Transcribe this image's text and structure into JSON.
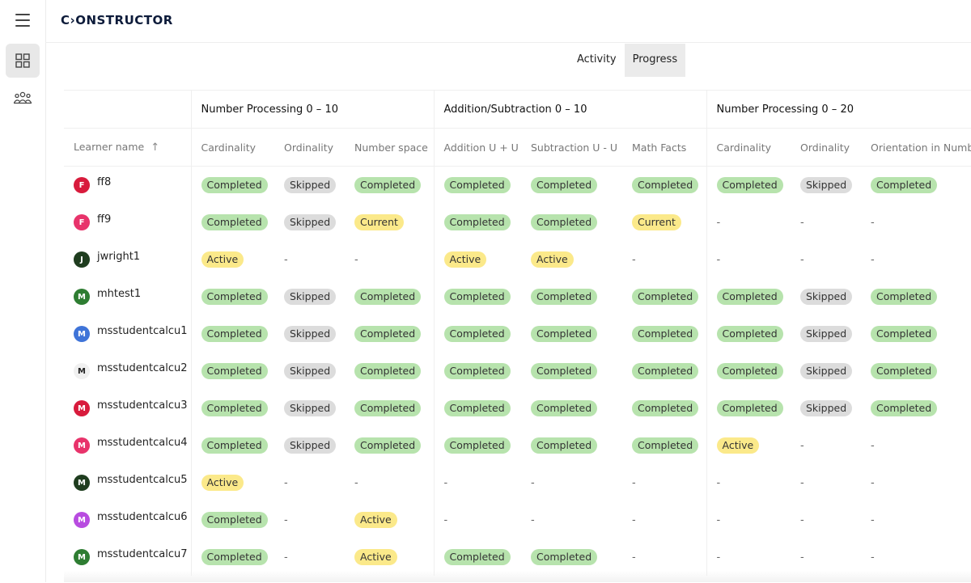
{
  "app": {
    "logo": "C›ONSTRUCTOR"
  },
  "rail": {
    "items": [
      {
        "icon": "dashboard-grid-icon",
        "active": true
      },
      {
        "icon": "people-group-icon",
        "active": false
      }
    ]
  },
  "toggle": {
    "tabs": [
      {
        "label": "Activity",
        "active": false
      },
      {
        "label": "Progress",
        "active": true
      }
    ]
  },
  "table": {
    "name_header": "Learner name",
    "groups": [
      {
        "label": "Number Processing 0 – 10",
        "span": 3
      },
      {
        "label": "Addition/Subtraction 0 – 10",
        "span": 3
      },
      {
        "label": "Number Processing 0 – 20",
        "span": 3
      }
    ],
    "columns": [
      "Cardinality",
      "Ordinality",
      "Number space",
      "Addition U + U",
      "Subtraction U - U",
      "Math Facts",
      "Cardinality",
      "Ordinality",
      "Orientation in Number"
    ],
    "rows": [
      {
        "initial": "F",
        "name": "ff8",
        "color": "#d81b3c",
        "cells": [
          "Completed",
          "Skipped",
          "Completed",
          "Completed",
          "Completed",
          "Completed",
          "Completed",
          "Skipped",
          "Completed"
        ]
      },
      {
        "initial": "F",
        "name": "ff9",
        "color": "#e8336b",
        "cells": [
          "Completed",
          "Skipped",
          "Current",
          "Completed",
          "Completed",
          "Current",
          "-",
          "-",
          "-"
        ]
      },
      {
        "initial": "J",
        "name": "jwright1",
        "color": "#1f3d1f",
        "cells": [
          "Active",
          "-",
          "-",
          "Active",
          "Active",
          "-",
          "-",
          "-",
          "-"
        ]
      },
      {
        "initial": "M",
        "name": "mhtest1",
        "color": "#2e7d32",
        "cells": [
          "Completed",
          "Skipped",
          "Completed",
          "Completed",
          "Completed",
          "Completed",
          "Completed",
          "Skipped",
          "Completed"
        ]
      },
      {
        "initial": "M",
        "name": "msstudentcalcu1",
        "color": "#3f74d8",
        "cells": [
          "Completed",
          "Skipped",
          "Completed",
          "Completed",
          "Completed",
          "Completed",
          "Completed",
          "Skipped",
          "Completed"
        ]
      },
      {
        "initial": "M",
        "name": "msstudentcalcu2",
        "color": "light",
        "cells": [
          "Completed",
          "Skipped",
          "Completed",
          "Completed",
          "Completed",
          "Completed",
          "Completed",
          "Skipped",
          "Completed"
        ]
      },
      {
        "initial": "M",
        "name": "msstudentcalcu3",
        "color": "#d81b3c",
        "cells": [
          "Completed",
          "Skipped",
          "Completed",
          "Completed",
          "Completed",
          "Completed",
          "Completed",
          "Skipped",
          "Completed"
        ]
      },
      {
        "initial": "M",
        "name": "msstudentcalcu4",
        "color": "#e8336b",
        "cells": [
          "Completed",
          "Skipped",
          "Completed",
          "Completed",
          "Completed",
          "Completed",
          "Active",
          "-",
          "-"
        ]
      },
      {
        "initial": "M",
        "name": "msstudentcalcu5",
        "color": "#1f3d1f",
        "cells": [
          "Active",
          "-",
          "-",
          "-",
          "-",
          "-",
          "-",
          "-",
          "-"
        ]
      },
      {
        "initial": "M",
        "name": "msstudentcalcu6",
        "color": "#b84ce0",
        "cells": [
          "Completed",
          "-",
          "Active",
          "-",
          "-",
          "-",
          "-",
          "-",
          "-"
        ]
      },
      {
        "initial": "M",
        "name": "msstudentcalcu7",
        "color": "#2e7d32",
        "cells": [
          "Completed",
          "-",
          "Active",
          "Completed",
          "Completed",
          "-",
          "-",
          "-",
          "-"
        ]
      }
    ]
  }
}
